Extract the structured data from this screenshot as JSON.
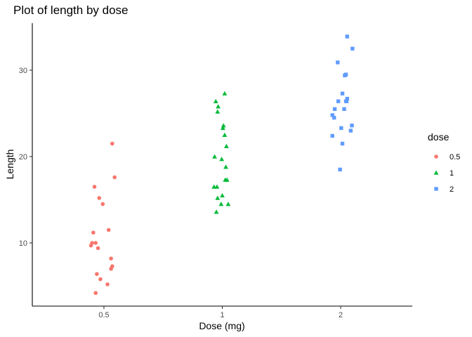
{
  "chart_data": {
    "type": "scatter",
    "title": "Plot of length  by dose",
    "xlabel": "Dose (mg)",
    "ylabel": "Length",
    "categories": [
      "0.5",
      "1",
      "2"
    ],
    "yticks": [
      10,
      20,
      30
    ],
    "ylim": [
      2.9,
      35.2
    ],
    "grid": false,
    "legend": {
      "title": "dose",
      "position": "right",
      "entries": [
        "0.5",
        "1",
        "2"
      ]
    },
    "colors": {
      "0.5": "#f8766d",
      "1": "#00ba38",
      "2": "#619cff"
    },
    "shapes": {
      "0.5": "circle",
      "1": "triangle",
      "2": "square"
    },
    "series": [
      {
        "name": "0.5",
        "points": [
          {
            "x": 0.43,
            "y": 4.2
          },
          {
            "x": 0.53,
            "y": 5.2
          },
          {
            "x": 0.47,
            "y": 5.8
          },
          {
            "x": 0.44,
            "y": 6.4
          },
          {
            "x": 0.56,
            "y": 7.0
          },
          {
            "x": 0.57,
            "y": 7.3
          },
          {
            "x": 0.56,
            "y": 8.2
          },
          {
            "x": 0.45,
            "y": 9.4
          },
          {
            "x": 0.39,
            "y": 9.7
          },
          {
            "x": 0.4,
            "y": 10.0
          },
          {
            "x": 0.43,
            "y": 10.0
          },
          {
            "x": 0.41,
            "y": 11.2
          },
          {
            "x": 0.54,
            "y": 11.5
          },
          {
            "x": 0.49,
            "y": 14.5
          },
          {
            "x": 0.46,
            "y": 15.2
          },
          {
            "x": 0.42,
            "y": 16.5
          },
          {
            "x": 0.59,
            "y": 17.6
          },
          {
            "x": 0.57,
            "y": 21.5
          }
        ]
      },
      {
        "name": "1",
        "points": [
          {
            "x": 0.9,
            "y": 13.6
          },
          {
            "x": 0.98,
            "y": 14.5
          },
          {
            "x": 1.1,
            "y": 14.5
          },
          {
            "x": 0.92,
            "y": 15.2
          },
          {
            "x": 1.0,
            "y": 15.5
          },
          {
            "x": 0.86,
            "y": 16.5
          },
          {
            "x": 0.91,
            "y": 16.5
          },
          {
            "x": 1.05,
            "y": 17.3
          },
          {
            "x": 1.08,
            "y": 17.3
          },
          {
            "x": 1.06,
            "y": 18.8
          },
          {
            "x": 0.87,
            "y": 20.0
          },
          {
            "x": 0.99,
            "y": 19.7
          },
          {
            "x": 1.07,
            "y": 21.2
          },
          {
            "x": 1.04,
            "y": 22.5
          },
          {
            "x": 1.01,
            "y": 23.3
          },
          {
            "x": 1.02,
            "y": 23.6
          },
          {
            "x": 0.92,
            "y": 25.2
          },
          {
            "x": 0.93,
            "y": 25.8
          },
          {
            "x": 0.89,
            "y": 26.4
          },
          {
            "x": 1.04,
            "y": 27.3
          }
        ]
      },
      {
        "name": "2",
        "points": [
          {
            "x": 1.99,
            "y": 18.5
          },
          {
            "x": 1.86,
            "y": 22.4
          },
          {
            "x": 2.03,
            "y": 21.5
          },
          {
            "x": 2.01,
            "y": 23.3
          },
          {
            "x": 2.17,
            "y": 23.0
          },
          {
            "x": 2.19,
            "y": 23.6
          },
          {
            "x": 1.89,
            "y": 24.5
          },
          {
            "x": 1.86,
            "y": 24.8
          },
          {
            "x": 1.9,
            "y": 25.5
          },
          {
            "x": 2.06,
            "y": 25.5
          },
          {
            "x": 1.96,
            "y": 26.4
          },
          {
            "x": 2.09,
            "y": 26.4
          },
          {
            "x": 2.1,
            "y": 26.4
          },
          {
            "x": 2.11,
            "y": 26.7
          },
          {
            "x": 2.03,
            "y": 27.3
          },
          {
            "x": 2.07,
            "y": 29.4
          },
          {
            "x": 2.09,
            "y": 29.5
          },
          {
            "x": 1.95,
            "y": 30.9
          },
          {
            "x": 2.2,
            "y": 32.5
          },
          {
            "x": 2.11,
            "y": 33.9
          }
        ]
      }
    ]
  }
}
